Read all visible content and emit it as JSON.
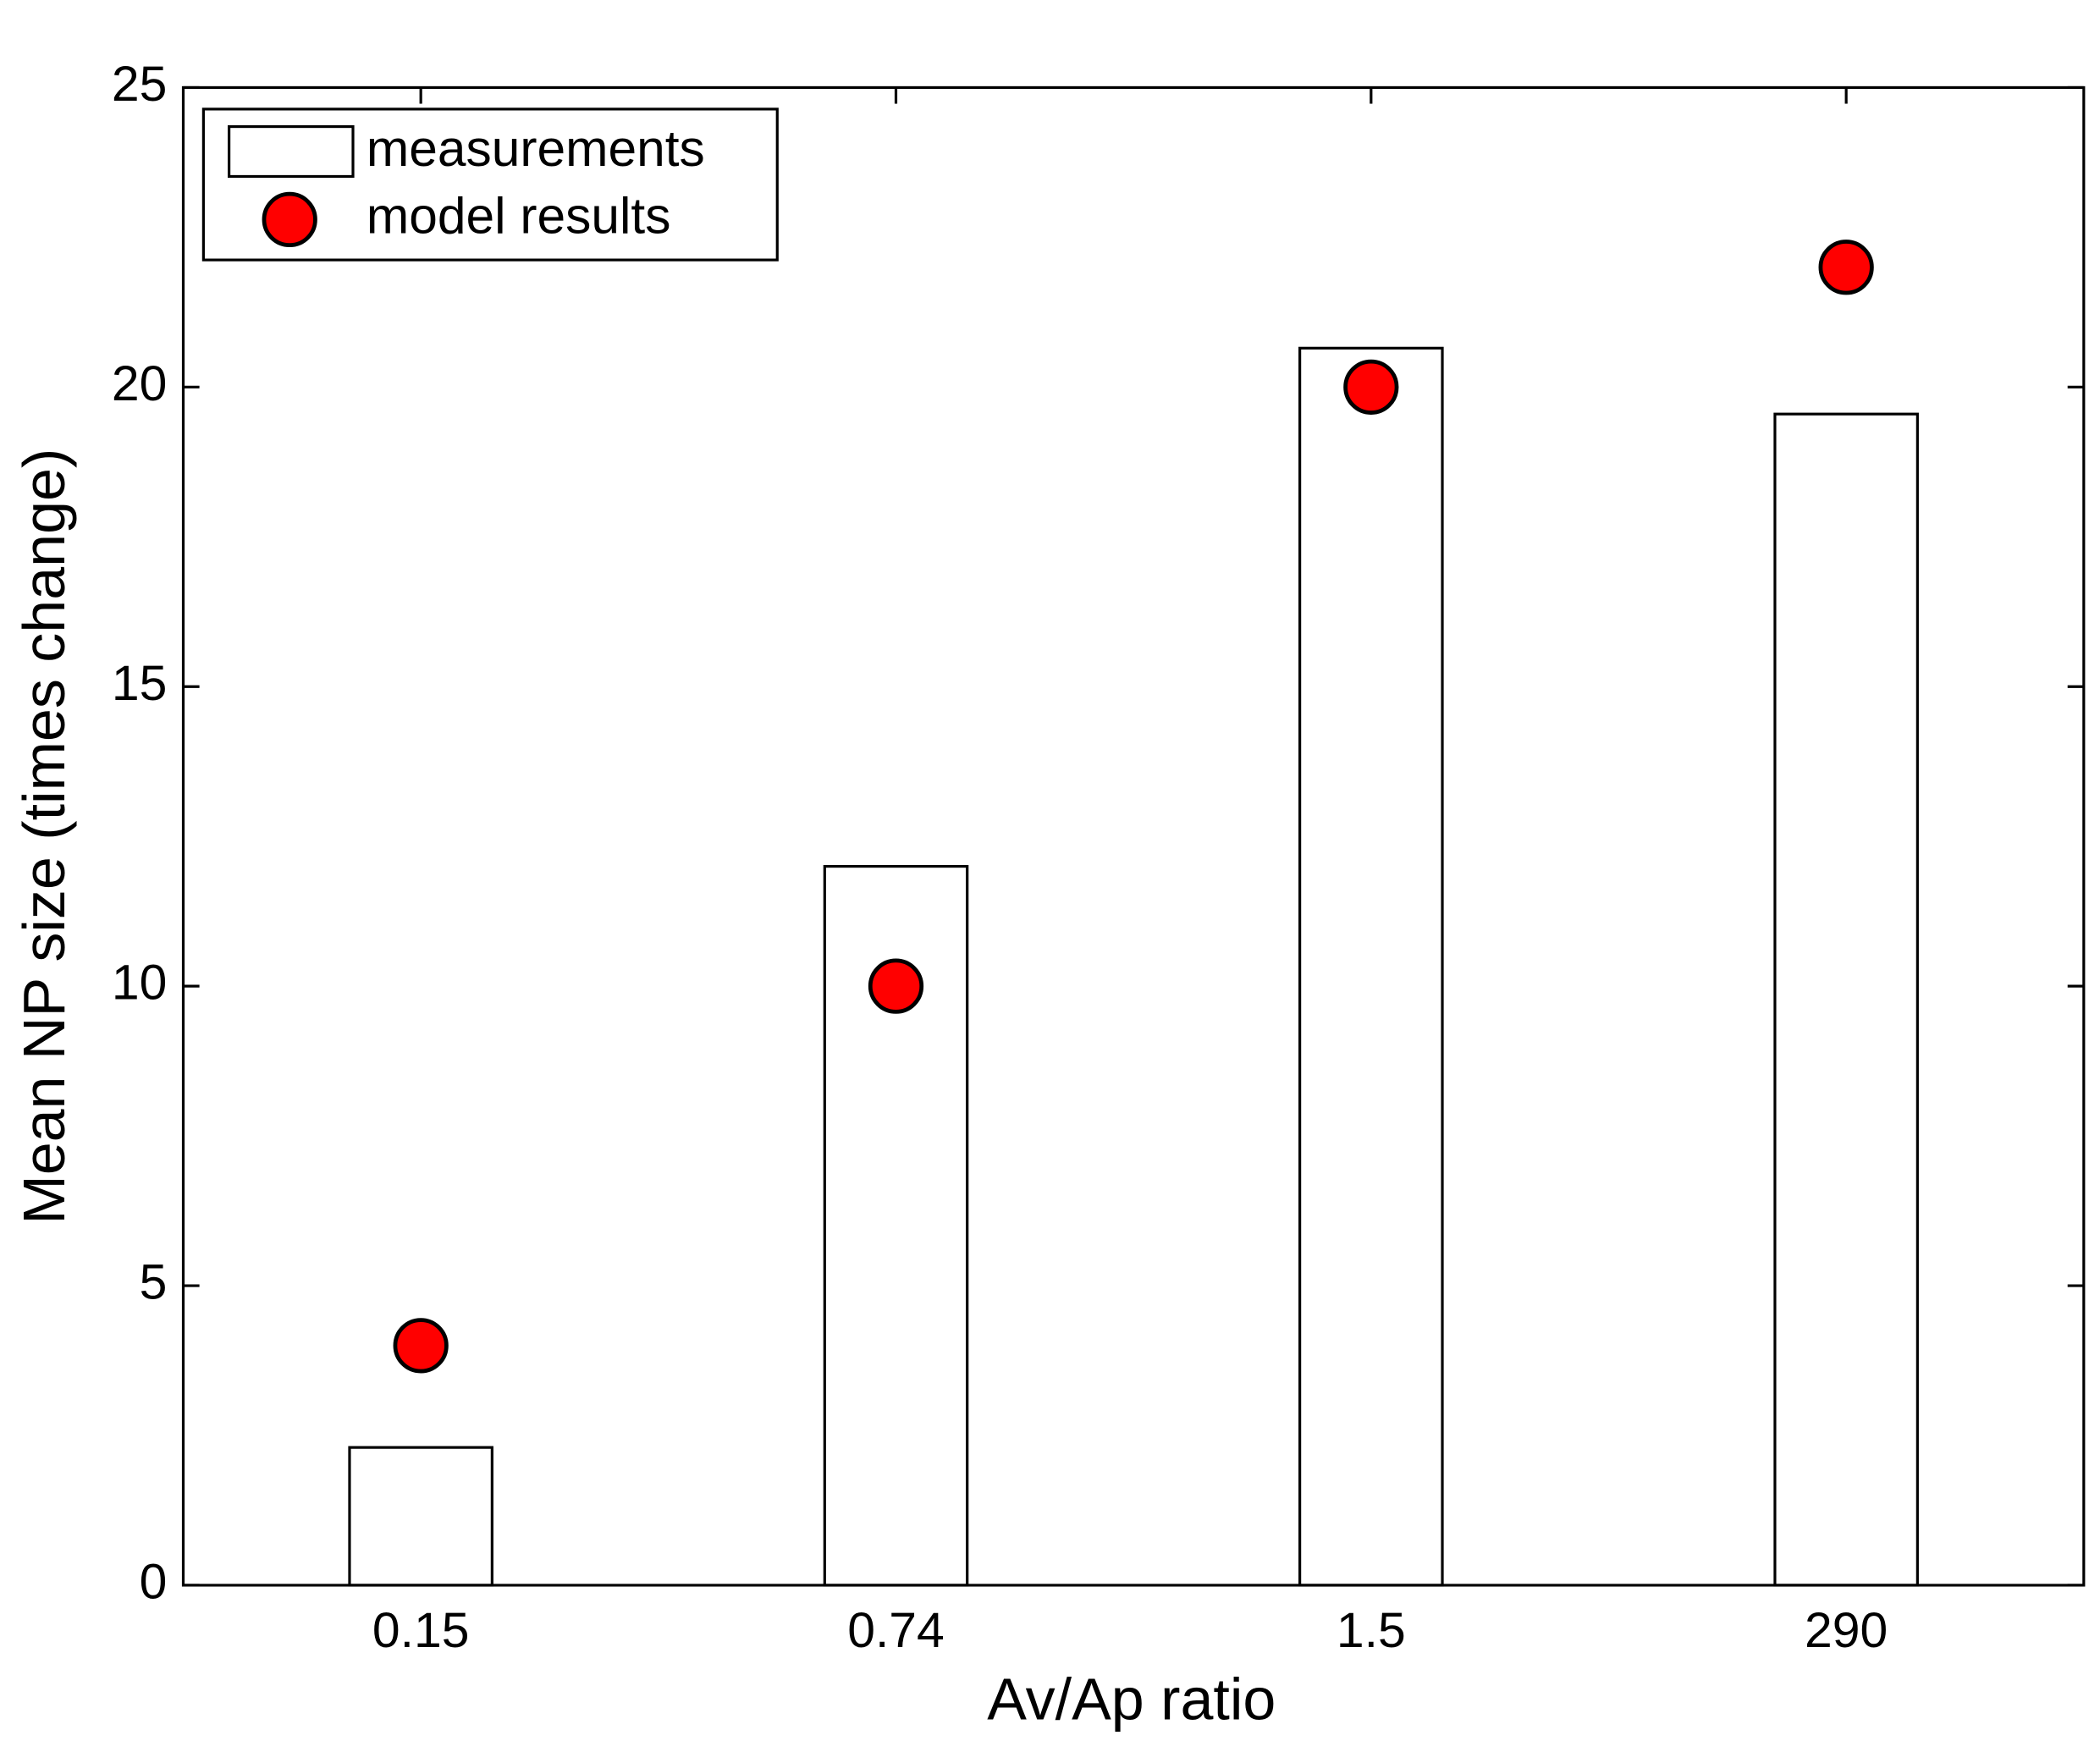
{
  "chart_data": {
    "type": "bar",
    "x_label": "Av/Ap ratio",
    "y_label": "Mean NP size (times change)",
    "categories": [
      "0.15",
      "0.74",
      "1.5",
      "290"
    ],
    "series": [
      {
        "name": "measurements",
        "type": "bar",
        "color": "#ffffff",
        "values": [
          2.3,
          12,
          20.65,
          19.55
        ]
      },
      {
        "name": "model results",
        "type": "scatter",
        "color": "#ff0000",
        "values": [
          4,
          10,
          20,
          22
        ]
      }
    ],
    "ylim": [
      0,
      25
    ],
    "yticks": [
      0,
      5,
      10,
      15,
      20,
      25
    ],
    "grid": false,
    "legend": "upper left"
  }
}
